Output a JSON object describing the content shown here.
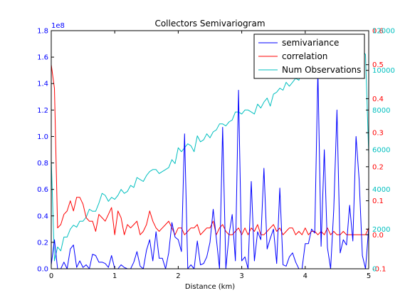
{
  "chart_data": {
    "type": "line",
    "title": "Collectors Semivariogram",
    "xlabel": "Distance (km)",
    "xlim": [
      0,
      5
    ],
    "x_ticks": [
      "0",
      "1",
      "2",
      "3",
      "4",
      "5"
    ],
    "left_axis": {
      "scale_text": "1e8",
      "color": "#0000ff",
      "ylim": [
        0,
        1.8
      ],
      "tick_labels": [
        "0.0",
        "0.2",
        "0.4",
        "0.6",
        "0.8",
        "1.0",
        "1.2",
        "1.4",
        "1.6",
        "1.8"
      ]
    },
    "right_axis_red": {
      "color": "#ff0000",
      "ylim": [
        -0.1,
        0.6
      ],
      "tick_labels": [
        "-0.1",
        "0.0",
        "0.1",
        "0.2",
        "0.3",
        "0.4",
        "0.5",
        "0.6"
      ]
    },
    "right_axis_cyan": {
      "color": "#00bfbf",
      "ylim": [
        0,
        12000
      ],
      "tick_labels": [
        "0",
        "2000",
        "4000",
        "6000",
        "8000",
        "10000",
        "12000"
      ]
    },
    "legend_position": "top-right",
    "series": [
      {
        "name": "semivariance",
        "color": "#0000ff",
        "axis": "left",
        "x": [
          0,
          0.05,
          0.1,
          0.15,
          0.2,
          0.25,
          0.3,
          0.35,
          0.4,
          0.45,
          0.5,
          0.55,
          0.6,
          0.65,
          0.7,
          0.75,
          0.8,
          0.85,
          0.9,
          0.95,
          1.0,
          1.05,
          1.1,
          1.15,
          1.2,
          1.25,
          1.3,
          1.35,
          1.4,
          1.45,
          1.5,
          1.55,
          1.6,
          1.65,
          1.7,
          1.75,
          1.8,
          1.85,
          1.9,
          1.95,
          2.0,
          2.05,
          2.1,
          2.15,
          2.2,
          2.25,
          2.3,
          2.35,
          2.4,
          2.45,
          2.5,
          2.55,
          2.6,
          2.65,
          2.7,
          2.75,
          2.8,
          2.85,
          2.9,
          2.95,
          3.0,
          3.05,
          3.1,
          3.15,
          3.2,
          3.25,
          3.3,
          3.35,
          3.4,
          3.45,
          3.5,
          3.55,
          3.6,
          3.65,
          3.7,
          3.75,
          3.8,
          3.85,
          3.9,
          3.95,
          4.0,
          4.05,
          4.1,
          4.15,
          4.2,
          4.25,
          4.3,
          4.35,
          4.4,
          4.45,
          4.5,
          4.55,
          4.6,
          4.65,
          4.7,
          4.75,
          4.8,
          4.85,
          4.9,
          4.95,
          5.0
        ],
        "values": [
          0.03,
          0.22,
          0.0,
          0.0,
          0.05,
          0.0,
          0.15,
          0.18,
          0.01,
          0.06,
          0.01,
          0.03,
          0.0,
          0.11,
          0.1,
          0.05,
          0.05,
          0.04,
          0.01,
          0.1,
          0.0,
          0.0,
          0.03,
          0.01,
          0.0,
          0.0,
          0.05,
          0.13,
          0.02,
          0.0,
          0.14,
          0.22,
          0.06,
          0.28,
          0.08,
          0.08,
          0.0,
          0.12,
          0.35,
          0.24,
          0.22,
          0.13,
          1.02,
          0.0,
          0.03,
          0.0,
          0.21,
          0.03,
          0.04,
          0.09,
          0.2,
          0.45,
          0.23,
          0.0,
          1.07,
          0.0,
          0.26,
          0.41,
          0.06,
          1.35,
          0.06,
          0.09,
          0.0,
          0.66,
          0.06,
          0.28,
          0.22,
          0.76,
          0.15,
          0.23,
          0.3,
          0.04,
          0.61,
          0.03,
          0.02,
          0.09,
          0.12,
          0.05,
          0.0,
          0.0,
          0.19,
          0.19,
          0.3,
          0.27,
          1.5,
          0.17,
          0.9,
          0.16,
          0.0,
          0.45,
          1.2,
          0.12,
          0.22,
          0.18,
          0.48,
          0.21,
          1.0,
          0.67,
          0.1,
          0.0,
          0.31
        ]
      },
      {
        "name": "correlation",
        "color": "#ff0000",
        "axis": "right_red",
        "x": [
          0,
          0.05,
          0.1,
          0.15,
          0.2,
          0.25,
          0.3,
          0.35,
          0.4,
          0.45,
          0.5,
          0.55,
          0.6,
          0.65,
          0.7,
          0.75,
          0.8,
          0.85,
          0.9,
          0.95,
          1.0,
          1.05,
          1.1,
          1.15,
          1.2,
          1.25,
          1.3,
          1.35,
          1.4,
          1.45,
          1.5,
          1.55,
          1.6,
          1.65,
          1.7,
          1.75,
          1.8,
          1.85,
          1.9,
          1.95,
          2.0,
          2.05,
          2.1,
          2.15,
          2.2,
          2.25,
          2.3,
          2.35,
          2.4,
          2.45,
          2.5,
          2.55,
          2.6,
          2.65,
          2.7,
          2.75,
          2.8,
          2.85,
          2.9,
          2.95,
          3.0,
          3.05,
          3.1,
          3.15,
          3.2,
          3.25,
          3.3,
          3.35,
          3.4,
          3.45,
          3.5,
          3.55,
          3.6,
          3.65,
          3.7,
          3.75,
          3.8,
          3.85,
          3.9,
          3.95,
          4.0,
          4.05,
          4.1,
          4.15,
          4.2,
          4.25,
          4.3,
          4.35,
          4.4,
          4.45,
          4.5,
          4.55,
          4.6,
          4.65,
          4.7,
          4.75,
          4.8,
          4.85,
          4.9,
          4.95,
          5.0
        ],
        "values": [
          0.5,
          0.43,
          0.02,
          0.03,
          0.06,
          0.07,
          0.1,
          0.07,
          0.11,
          0.11,
          0.09,
          0.05,
          0.04,
          0.04,
          0.01,
          0.06,
          0.05,
          0.04,
          0.06,
          0.08,
          0.0,
          0.07,
          0.05,
          0.0,
          0.03,
          0.02,
          0.03,
          0.04,
          0.0,
          0.01,
          0.03,
          0.07,
          0.04,
          0.02,
          0.01,
          0.02,
          0.03,
          0.04,
          0.02,
          0.0,
          0.02,
          0.02,
          0.0,
          0.01,
          0.02,
          0.02,
          0.03,
          0.0,
          0.01,
          0.02,
          0.02,
          0.04,
          0.0,
          0.02,
          0.03,
          0.01,
          0.0,
          0.0,
          0.01,
          0.02,
          0.0,
          0.02,
          0.0,
          0.02,
          0.01,
          0.03,
          0.0,
          0.0,
          0.01,
          0.02,
          0.03,
          0.01,
          0.02,
          0.0,
          0.01,
          0.02,
          0.02,
          0.0,
          0.01,
          0.0,
          0.02,
          0.0,
          0.01,
          0.01,
          0.0,
          0.01,
          0.0,
          0.02,
          0.0,
          0.01,
          0.0,
          0.0,
          0.01,
          0.0,
          0.0,
          0.0,
          0.0,
          0.0,
          0.0,
          0.0,
          0.02
        ]
      },
      {
        "name": "Num Observations",
        "color": "#00bfbf",
        "axis": "right_cyan",
        "x": [
          0,
          0.05,
          0.1,
          0.15,
          0.2,
          0.25,
          0.3,
          0.35,
          0.4,
          0.45,
          0.5,
          0.55,
          0.6,
          0.65,
          0.7,
          0.75,
          0.8,
          0.85,
          0.9,
          0.95,
          1.0,
          1.05,
          1.1,
          1.15,
          1.2,
          1.25,
          1.3,
          1.35,
          1.4,
          1.45,
          1.5,
          1.55,
          1.6,
          1.65,
          1.7,
          1.75,
          1.8,
          1.85,
          1.9,
          1.95,
          2.0,
          2.05,
          2.1,
          2.15,
          2.2,
          2.25,
          2.3,
          2.35,
          2.4,
          2.45,
          2.5,
          2.55,
          2.6,
          2.65,
          2.7,
          2.75,
          2.8,
          2.85,
          2.9,
          2.95,
          3.0,
          3.05,
          3.1,
          3.15,
          3.2,
          3.25,
          3.3,
          3.35,
          3.4,
          3.45,
          3.5,
          3.55,
          3.6,
          3.65,
          3.7,
          3.75,
          3.8,
          3.85,
          3.9,
          3.95,
          4.0,
          4.05,
          4.1,
          4.15,
          4.2,
          4.25,
          4.3,
          4.35,
          4.4,
          4.45,
          4.5,
          4.55,
          4.6,
          4.65,
          4.7,
          4.75,
          4.8,
          4.85,
          4.9,
          4.95,
          5.0
        ],
        "values": [
          5500,
          400,
          1100,
          900,
          1600,
          1600,
          2000,
          2200,
          2100,
          2400,
          2400,
          2600,
          3000,
          2900,
          2900,
          3300,
          3800,
          3700,
          3400,
          3600,
          3500,
          3700,
          4000,
          3800,
          3900,
          4200,
          4100,
          4600,
          4500,
          4400,
          4700,
          4900,
          5000,
          5000,
          4800,
          4900,
          5000,
          5100,
          5500,
          5300,
          6100,
          5900,
          6100,
          6300,
          6200,
          5900,
          6700,
          6400,
          6500,
          6800,
          6600,
          6900,
          7000,
          7300,
          7300,
          7200,
          7400,
          7500,
          7900,
          7900,
          7800,
          8000,
          8000,
          7900,
          7800,
          8300,
          8100,
          8400,
          8600,
          8200,
          8800,
          8900,
          9100,
          9000,
          9400,
          9200,
          9400,
          9600,
          9500,
          10100,
          10000,
          9600,
          10300,
          9700,
          9800,
          9700,
          9800,
          10200,
          10200,
          10300,
          10100,
          10400,
          10400,
          10600,
          10700,
          10600,
          11000,
          10700,
          11000,
          10800,
          5800
        ]
      }
    ]
  }
}
